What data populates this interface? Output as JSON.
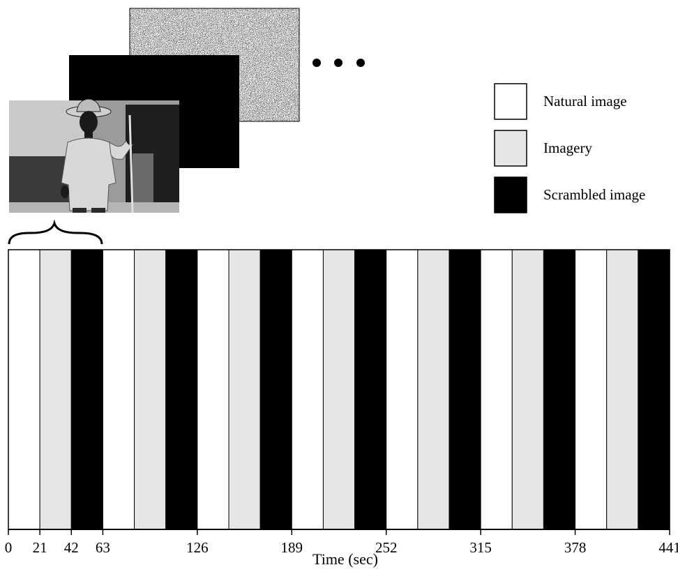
{
  "chart_data": {
    "type": "bar",
    "title": "",
    "xlabel": "Time (sec)",
    "ylabel": "",
    "xlim": [
      0,
      441
    ],
    "x_ticks": [
      0,
      21,
      42,
      63,
      126,
      189,
      252,
      315,
      378,
      441
    ],
    "cycle_seconds": 63,
    "block_seconds": 21,
    "conditions": [
      "Natural image",
      "Imagery",
      "Scrambled image"
    ],
    "blocks": [
      {
        "start": 0,
        "end": 21,
        "condition": "Natural image"
      },
      {
        "start": 21,
        "end": 42,
        "condition": "Imagery"
      },
      {
        "start": 42,
        "end": 63,
        "condition": "Scrambled image"
      },
      {
        "start": 63,
        "end": 84,
        "condition": "Natural image"
      },
      {
        "start": 84,
        "end": 105,
        "condition": "Imagery"
      },
      {
        "start": 105,
        "end": 126,
        "condition": "Scrambled image"
      },
      {
        "start": 126,
        "end": 147,
        "condition": "Natural image"
      },
      {
        "start": 147,
        "end": 168,
        "condition": "Imagery"
      },
      {
        "start": 168,
        "end": 189,
        "condition": "Scrambled image"
      },
      {
        "start": 189,
        "end": 210,
        "condition": "Natural image"
      },
      {
        "start": 210,
        "end": 231,
        "condition": "Imagery"
      },
      {
        "start": 231,
        "end": 252,
        "condition": "Scrambled image"
      },
      {
        "start": 252,
        "end": 273,
        "condition": "Natural image"
      },
      {
        "start": 273,
        "end": 294,
        "condition": "Imagery"
      },
      {
        "start": 294,
        "end": 315,
        "condition": "Scrambled image"
      },
      {
        "start": 315,
        "end": 336,
        "condition": "Natural image"
      },
      {
        "start": 336,
        "end": 357,
        "condition": "Imagery"
      },
      {
        "start": 357,
        "end": 378,
        "condition": "Scrambled image"
      },
      {
        "start": 378,
        "end": 399,
        "condition": "Natural image"
      },
      {
        "start": 399,
        "end": 420,
        "condition": "Imagery"
      },
      {
        "start": 420,
        "end": 441,
        "condition": "Scrambled image"
      }
    ]
  },
  "legend": {
    "items": [
      {
        "label": "Natural image",
        "color": "#ffffff"
      },
      {
        "label": "Imagery",
        "color": "#e6e6e6"
      },
      {
        "label": "Scrambled image",
        "color": "#000000"
      }
    ]
  },
  "colors": {
    "Natural image": "#ffffff",
    "Imagery": "#e6e6e6",
    "Scrambled image": "#000000"
  },
  "stimulus_illustration": {
    "frames": [
      "photo-icon",
      "black-frame",
      "noise-frame"
    ],
    "continuation": "ellipsis-dots-icon"
  }
}
